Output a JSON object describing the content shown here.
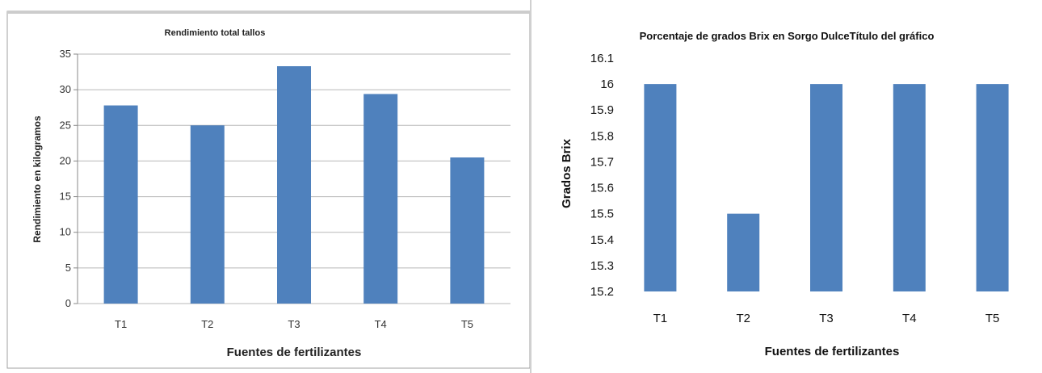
{
  "chart_data": [
    {
      "type": "bar",
      "title": "Rendimiento total tallos",
      "xlabel": "Fuentes de fertilizantes",
      "ylabel": "Rendimiento en kilogramos",
      "categories": [
        "T1",
        "T2",
        "T3",
        "T4",
        "T5"
      ],
      "values": [
        27.8,
        25.0,
        33.3,
        29.4,
        20.5
      ],
      "ylim": [
        0,
        35
      ],
      "yticks": [
        "0",
        "5",
        "10",
        "15",
        "20",
        "25",
        "30",
        "35"
      ],
      "grid": true,
      "bar_color": "#4f81bd"
    },
    {
      "type": "bar",
      "title": "Porcentaje de grados Brix en Sorgo DulceTítulo del gráfico",
      "xlabel": "Fuentes de fertilizantes",
      "ylabel": "Grados Brix",
      "categories": [
        "T1",
        "T2",
        "T3",
        "T4",
        "T5"
      ],
      "values": [
        16,
        15.5,
        16,
        16,
        16
      ],
      "ylim": [
        15.2,
        16.1
      ],
      "yticks": [
        "15.2",
        "15.3",
        "15.4",
        "15.5",
        "15.6",
        "15.7",
        "15.8",
        "15.9",
        "16",
        "16.1"
      ],
      "grid": false,
      "bar_color": "#4f81bd"
    }
  ]
}
